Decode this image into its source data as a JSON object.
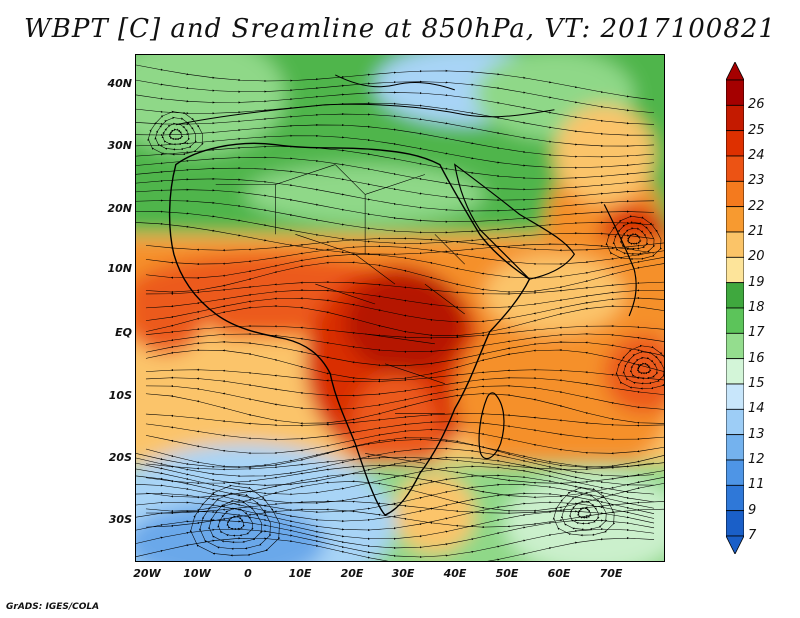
{
  "title": "WBPT [C] and Sreamline at 850hPa, VT: 2017100821",
  "credit": "GrADS: IGES/COLA",
  "map": {
    "lat_labels": [
      "40N",
      "30N",
      "20N",
      "10N",
      "EQ",
      "10S",
      "20S",
      "30S"
    ],
    "lon_labels": [
      "20W",
      "10W",
      "0",
      "10E",
      "20E",
      "30E",
      "40E",
      "50E",
      "60E",
      "70E"
    ],
    "lat_range": [
      -36,
      45
    ],
    "lon_range": [
      -22,
      80
    ]
  },
  "colorbar": {
    "labels": [
      "26",
      "25",
      "24",
      "23",
      "22",
      "21",
      "20",
      "19",
      "18",
      "17",
      "16",
      "15",
      "14",
      "13",
      "12",
      "11",
      "9",
      "7"
    ],
    "colors": [
      "#a50000",
      "#c41a00",
      "#de3000",
      "#ec5314",
      "#f47a1e",
      "#f79a30",
      "#fbc468",
      "#fde49a",
      "#3fa83e",
      "#5cc45a",
      "#94dd8e",
      "#d3f5d8",
      "#c8e6fb",
      "#9dcdf6",
      "#74b2ee",
      "#4e95e6",
      "#2f78d8",
      "#1a5fc8"
    ]
  },
  "palette": {
    "deep_red": "#b51200",
    "red": "#d92f00",
    "orange_red": "#ec5a1a",
    "orange": "#f5902c",
    "light_orange": "#fbc46a",
    "pale_yellow": "#fde8a4",
    "green": "#4fb54c",
    "light_green": "#8fd888",
    "pale_green": "#cbf0cc",
    "light_blue": "#a8d4f6",
    "blue": "#6aa8ea",
    "deep_blue": "#3d7fdc"
  }
}
